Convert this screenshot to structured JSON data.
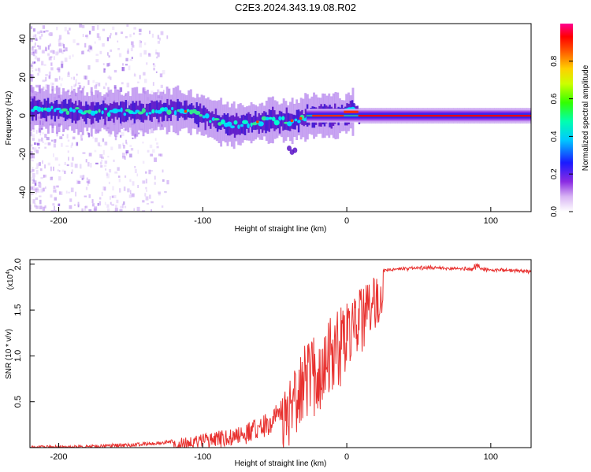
{
  "title": "C2E3.2024.343.19.08.R02",
  "chart_data": [
    {
      "type": "heatmap",
      "xlabel": "Height of straight line (km)",
      "ylabel": "Frequency (Hz)",
      "xlim": [
        -220,
        128
      ],
      "ylim": [
        -50,
        48
      ],
      "xticks": [
        -200,
        -100,
        0,
        100
      ],
      "yticks": [
        -40,
        -20,
        0,
        20,
        40
      ],
      "colorbar": {
        "label": "Normalized spectral amplitude",
        "range": [
          0,
          1
        ],
        "ticks": [
          "0.0",
          "0.2",
          "0.4",
          "0.6",
          "0.8"
        ]
      },
      "ridge": {
        "x": [
          -220,
          -200,
          -180,
          -160,
          -140,
          -120,
          -110,
          -100,
          -90,
          -80,
          -70,
          -60,
          -50,
          -40,
          -35,
          -30,
          -25,
          -20,
          -10,
          -2,
          0,
          5,
          8,
          10,
          20,
          40,
          60,
          80,
          100,
          128
        ],
        "y": [
          4,
          3,
          2,
          2,
          2,
          3,
          2,
          0,
          -3,
          -5,
          -4,
          -3,
          -2,
          -3,
          -2,
          -1,
          0,
          0,
          0,
          0,
          2,
          2,
          0,
          0,
          0,
          0,
          0,
          0,
          0,
          0
        ]
      }
    },
    {
      "type": "line",
      "xlabel": "Height of straight line (km)",
      "ylabel": "SNR (10 * v/v)",
      "y_multiplier": "(x10",
      "y_multiplier_exp": "4",
      "xlim": [
        -220,
        128
      ],
      "ylim": [
        0,
        2.05
      ],
      "xticks": [
        -200,
        -100,
        0,
        100
      ],
      "yticks": [
        "0.5",
        "1.0",
        "1.5",
        "2.0"
      ],
      "color": "#e8312f",
      "envelope": {
        "x": [
          -220,
          -180,
          -150,
          -130,
          -110,
          -90,
          -70,
          -55,
          -45,
          -38,
          -33,
          -28,
          -22,
          -16,
          -10,
          -5,
          0,
          5,
          10,
          15,
          20,
          25,
          30,
          40,
          50,
          60,
          80,
          100,
          128
        ],
        "y": [
          0.02,
          0.03,
          0.05,
          0.07,
          0.12,
          0.18,
          0.26,
          0.38,
          0.55,
          0.8,
          1.0,
          1.15,
          1.3,
          1.4,
          1.45,
          1.55,
          1.6,
          1.68,
          1.75,
          1.8,
          1.88,
          1.93,
          1.95,
          1.96,
          1.97,
          1.97,
          1.96,
          1.95,
          1.93
        ]
      }
    }
  ]
}
